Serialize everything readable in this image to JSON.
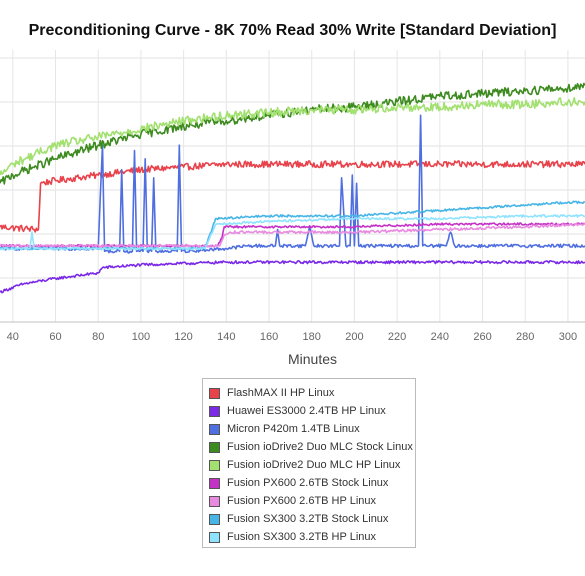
{
  "chart_data": {
    "type": "line",
    "title": "Preconditioning Curve - 8K 70% Read 30% Write [Standard Deviation]",
    "xlabel": "Minutes",
    "ylabel": "",
    "xlim": [
      34,
      308
    ],
    "ylim": [
      0,
      10
    ],
    "x_ticks": [
      40,
      60,
      80,
      100,
      120,
      140,
      160,
      180,
      200,
      220,
      240,
      260,
      280,
      300
    ],
    "grid": true,
    "legend_position": "bottom",
    "series": [
      {
        "name": "FlashMAX II HP Linux",
        "color": "#e8424b",
        "points": [
          [
            34,
            3.5
          ],
          [
            52,
            3.4
          ],
          [
            53,
            5.1
          ],
          [
            60,
            5.2
          ],
          [
            80,
            5.4
          ],
          [
            100,
            5.6
          ],
          [
            120,
            5.7
          ],
          [
            140,
            5.8
          ],
          [
            160,
            5.8
          ],
          [
            180,
            5.8
          ],
          [
            200,
            5.8
          ],
          [
            220,
            5.8
          ],
          [
            240,
            5.8
          ],
          [
            260,
            5.8
          ],
          [
            280,
            5.8
          ],
          [
            300,
            5.8
          ],
          [
            308,
            5.8
          ]
        ]
      },
      {
        "name": "Huawei ES3000 2.4TB HP Linux",
        "color": "#7a29e6",
        "points": [
          [
            34,
            1.1
          ],
          [
            45,
            1.4
          ],
          [
            60,
            1.6
          ],
          [
            80,
            1.8
          ],
          [
            82,
            2.0
          ],
          [
            100,
            2.1
          ],
          [
            140,
            2.2
          ],
          [
            180,
            2.2
          ],
          [
            220,
            2.2
          ],
          [
            260,
            2.2
          ],
          [
            308,
            2.2
          ]
        ]
      },
      {
        "name": "Micron P420m 1.4TB Linux",
        "color": "#4f6fe0",
        "points": [
          [
            34,
            2.7
          ],
          [
            80,
            2.7
          ],
          [
            82,
            6.5
          ],
          [
            83,
            2.6
          ],
          [
            90,
            2.6
          ],
          [
            91,
            5.6
          ],
          [
            92,
            2.6
          ],
          [
            96,
            2.6
          ],
          [
            97,
            6.3
          ],
          [
            98,
            2.6
          ],
          [
            101,
            2.6
          ],
          [
            102,
            6.0
          ],
          [
            103,
            2.6
          ],
          [
            105,
            2.6
          ],
          [
            106,
            5.3
          ],
          [
            107,
            2.6
          ],
          [
            117,
            2.6
          ],
          [
            118,
            6.5
          ],
          [
            119,
            2.6
          ],
          [
            140,
            2.7
          ],
          [
            150,
            2.8
          ],
          [
            163,
            2.8
          ],
          [
            164,
            3.4
          ],
          [
            165,
            2.8
          ],
          [
            177,
            2.8
          ],
          [
            179,
            3.5
          ],
          [
            181,
            2.8
          ],
          [
            193,
            2.8
          ],
          [
            194,
            5.3
          ],
          [
            196,
            2.8
          ],
          [
            198,
            2.8
          ],
          [
            199,
            5.4
          ],
          [
            200,
            2.8
          ],
          [
            201,
            5.1
          ],
          [
            202,
            2.8
          ],
          [
            230,
            2.8
          ],
          [
            231,
            7.6
          ],
          [
            232,
            2.8
          ],
          [
            243,
            2.8
          ],
          [
            245,
            3.3
          ],
          [
            247,
            2.8
          ],
          [
            290,
            2.8
          ],
          [
            308,
            2.8
          ]
        ]
      },
      {
        "name": "Fusion ioDrive2 Duo MLC Stock Linux",
        "color": "#3d8a1f",
        "points": [
          [
            34,
            5.1
          ],
          [
            40,
            5.4
          ],
          [
            60,
            6.0
          ],
          [
            80,
            6.5
          ],
          [
            100,
            6.9
          ],
          [
            120,
            7.2
          ],
          [
            140,
            7.4
          ],
          [
            160,
            7.6
          ],
          [
            180,
            7.8
          ],
          [
            200,
            7.9
          ],
          [
            220,
            8.1
          ],
          [
            240,
            8.3
          ],
          [
            260,
            8.4
          ],
          [
            280,
            8.5
          ],
          [
            300,
            8.6
          ],
          [
            308,
            8.7
          ]
        ]
      },
      {
        "name": "Fusion ioDrive2 Duo MLC HP Linux",
        "color": "#a2e070",
        "points": [
          [
            34,
            5.4
          ],
          [
            40,
            5.8
          ],
          [
            60,
            6.5
          ],
          [
            80,
            6.8
          ],
          [
            100,
            7.1
          ],
          [
            120,
            7.4
          ],
          [
            140,
            7.6
          ],
          [
            160,
            7.7
          ],
          [
            180,
            7.8
          ],
          [
            200,
            7.8
          ],
          [
            220,
            7.9
          ],
          [
            240,
            7.9
          ],
          [
            260,
            8.0
          ],
          [
            280,
            8.0
          ],
          [
            300,
            8.1
          ],
          [
            308,
            8.1
          ]
        ]
      },
      {
        "name": "Fusion PX600 2.6TB Stock Linux",
        "color": "#c431c6",
        "points": [
          [
            34,
            2.8
          ],
          [
            136,
            2.8
          ],
          [
            138,
            3.1
          ],
          [
            139,
            3.5
          ],
          [
            160,
            3.5
          ],
          [
            200,
            3.5
          ],
          [
            240,
            3.6
          ],
          [
            280,
            3.6
          ],
          [
            308,
            3.6
          ]
        ]
      },
      {
        "name": "Fusion PX600 2.6TB HP Linux",
        "color": "#e88be0",
        "points": [
          [
            34,
            2.8
          ],
          [
            137,
            2.8
          ],
          [
            139,
            3.2
          ],
          [
            142,
            3.3
          ],
          [
            160,
            3.3
          ],
          [
            200,
            3.3
          ],
          [
            240,
            3.4
          ],
          [
            280,
            3.5
          ],
          [
            308,
            3.6
          ]
        ]
      },
      {
        "name": "Fusion SX300 3.2TB Stock Linux",
        "color": "#47b5e6",
        "points": [
          [
            34,
            2.7
          ],
          [
            130,
            2.7
          ],
          [
            135,
            3.8
          ],
          [
            160,
            3.9
          ],
          [
            180,
            3.9
          ],
          [
            200,
            3.9
          ],
          [
            220,
            4.0
          ],
          [
            240,
            4.1
          ],
          [
            260,
            4.2
          ],
          [
            280,
            4.3
          ],
          [
            300,
            4.4
          ],
          [
            308,
            4.4
          ]
        ]
      },
      {
        "name": "Fusion SX300 3.2TB HP Linux",
        "color": "#8fe3ff",
        "points": [
          [
            34,
            2.7
          ],
          [
            48,
            2.7
          ],
          [
            49,
            3.3
          ],
          [
            50,
            2.7
          ],
          [
            130,
            2.7
          ],
          [
            135,
            3.6
          ],
          [
            160,
            3.7
          ],
          [
            200,
            3.8
          ],
          [
            240,
            3.8
          ],
          [
            280,
            3.9
          ],
          [
            308,
            3.9
          ]
        ]
      }
    ]
  }
}
